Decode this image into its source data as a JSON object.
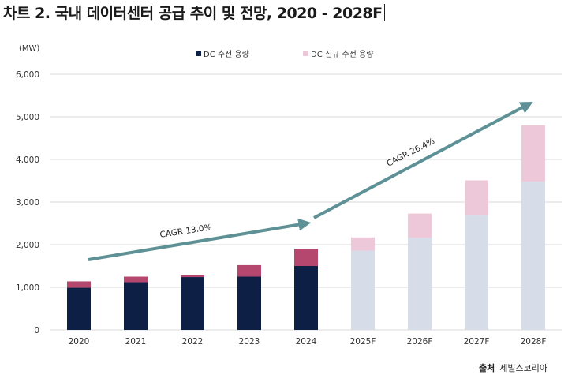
{
  "title": "차트 2. 국내 데이터센터 공급 추이 및 전망, 2020 - 2028F",
  "unit_label": "(MW)",
  "source": {
    "label": "출처",
    "name": "세빌스코리아"
  },
  "colors": {
    "existing_actual": "#0d1f44",
    "new_actual": "#b5476f",
    "existing_forecast": "#d6dce8",
    "new_forecast": "#ecc8d8",
    "arrow": "#5e9196",
    "grid": "#d9d9d9"
  },
  "chart_data": {
    "type": "bar",
    "stacked": true,
    "categories": [
      "2020",
      "2021",
      "2022",
      "2023",
      "2024",
      "2025F",
      "2026F",
      "2027F",
      "2028F"
    ],
    "forecast_from_index": 5,
    "series": [
      {
        "name": "DC 수전 용량",
        "values": [
          990,
          1120,
          1240,
          1250,
          1500,
          1860,
          2160,
          2700,
          3480
        ]
      },
      {
        "name": "DC 신규 수전 용량",
        "values": [
          150,
          130,
          40,
          270,
          400,
          310,
          570,
          810,
          1320
        ]
      }
    ],
    "ylabel": "(MW)",
    "ylim": [
      0,
      6000
    ],
    "yticks": [
      "0",
      "1,000",
      "2,000",
      "3,000",
      "4,000",
      "5,000",
      "6,000"
    ],
    "ytick_values": [
      0,
      1000,
      2000,
      3000,
      4000,
      5000,
      6000
    ],
    "grid": true,
    "legend_position": "top",
    "annotations": [
      {
        "text": "CAGR 13.0%",
        "from_category": "2020",
        "to_category": "2024"
      },
      {
        "text": "CAGR 26.4%",
        "from_category": "2024",
        "to_category": "2028F"
      }
    ]
  }
}
